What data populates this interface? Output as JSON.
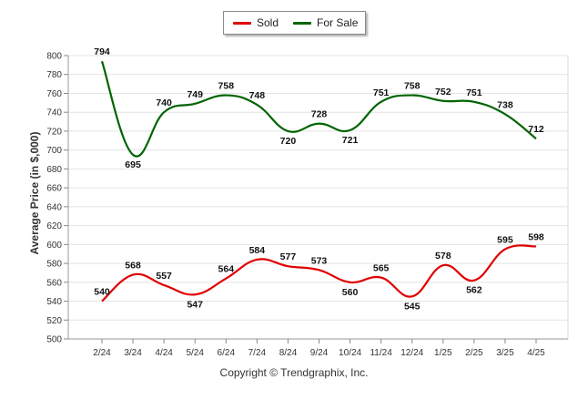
{
  "chart_data": {
    "type": "line",
    "title": "",
    "ylabel": "Average Price (in $,000)",
    "xlabel": "",
    "categories": [
      "2/24",
      "3/24",
      "4/24",
      "5/24",
      "6/24",
      "7/24",
      "8/24",
      "9/24",
      "10/24",
      "11/24",
      "12/24",
      "1/25",
      "2/25",
      "3/25",
      "4/25"
    ],
    "ylim": [
      500,
      800
    ],
    "yticks": [
      500,
      520,
      540,
      560,
      580,
      600,
      620,
      640,
      660,
      680,
      700,
      720,
      740,
      760,
      780,
      800
    ],
    "grid": true,
    "legend_position": "top-center",
    "series": [
      {
        "name": "Sold",
        "color": "#e00000",
        "values": [
          540,
          568,
          557,
          547,
          564,
          584,
          577,
          573,
          560,
          565,
          545,
          578,
          562,
          595,
          598
        ]
      },
      {
        "name": "For Sale",
        "color": "#006400",
        "values": [
          794,
          695,
          740,
          749,
          758,
          748,
          720,
          728,
          721,
          751,
          758,
          752,
          751,
          738,
          712
        ]
      }
    ]
  },
  "footer": {
    "copyright": "Copyright © Trendgraphix, Inc."
  }
}
